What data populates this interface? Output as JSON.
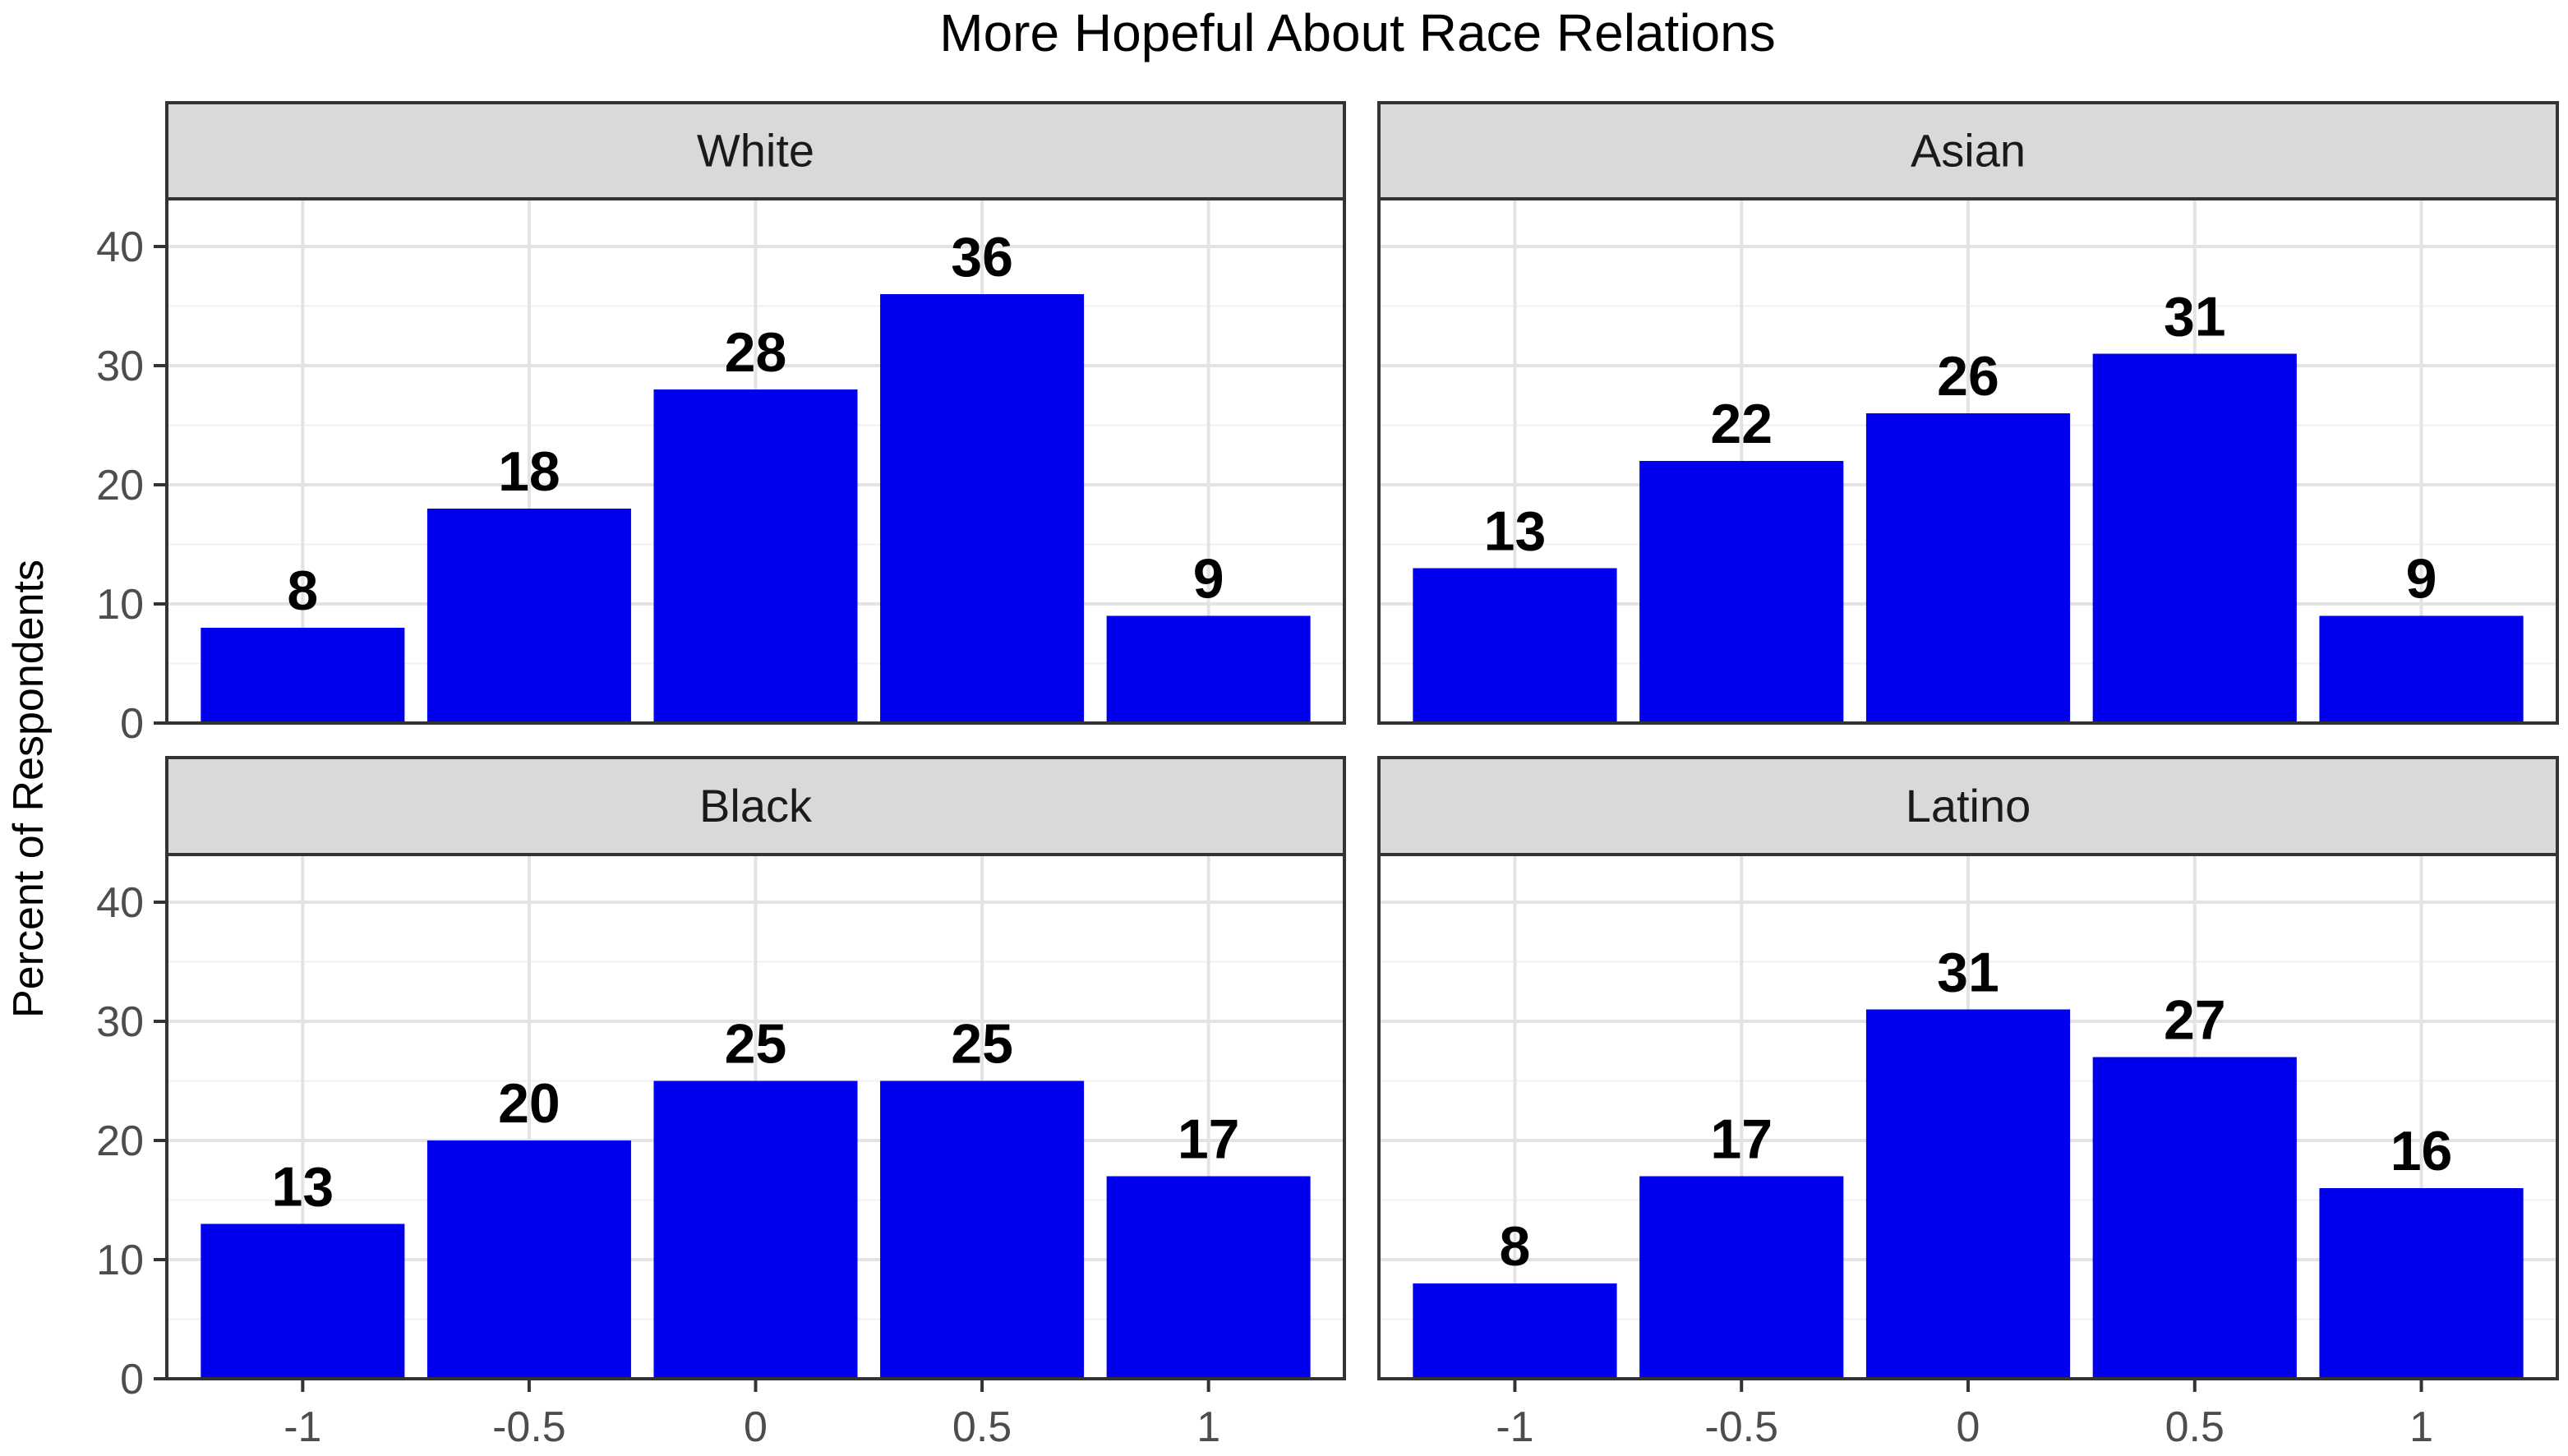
{
  "chart_data": {
    "type": "bar",
    "title": "More Hopeful About Race Relations",
    "xlabel": "",
    "ylabel": "Percent of Respondents",
    "categories": [
      "-1",
      "-0.5",
      "0",
      "0.5",
      "1"
    ],
    "ylim": [
      0,
      44
    ],
    "yticks": [
      0,
      10,
      20,
      30,
      40
    ],
    "grid": true,
    "bar_color": "#0000EE",
    "panels": [
      {
        "name": "White",
        "values": [
          8,
          18,
          28,
          36,
          9
        ]
      },
      {
        "name": "Asian",
        "values": [
          13,
          22,
          26,
          31,
          9
        ]
      },
      {
        "name": "Black",
        "values": [
          13,
          20,
          25,
          25,
          17
        ]
      },
      {
        "name": "Latino",
        "values": [
          8,
          17,
          31,
          27,
          16
        ]
      }
    ]
  }
}
